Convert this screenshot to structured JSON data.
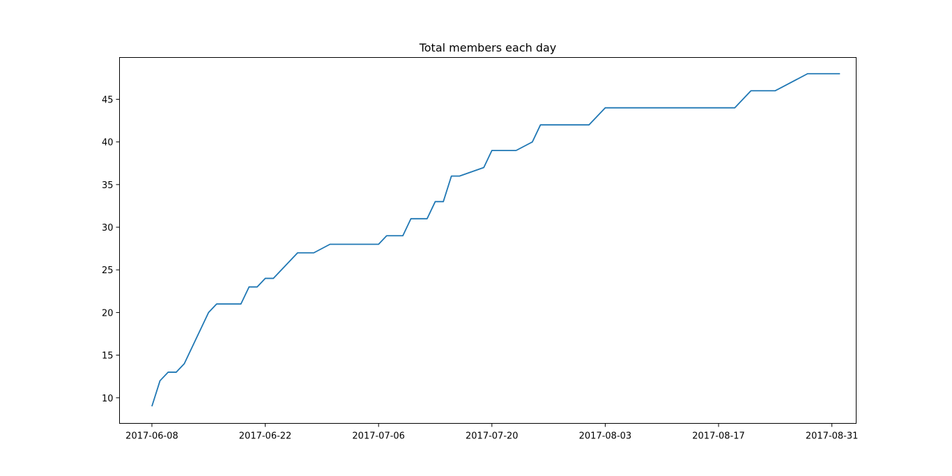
{
  "chart_data": {
    "type": "line",
    "title": "Total members each day",
    "xlabel": "",
    "ylabel": "",
    "x_axis_type": "date",
    "xlim": [
      "2017-06-04",
      "2017-09-03"
    ],
    "ylim": [
      7.0,
      49.9
    ],
    "x_ticks": [
      "2017-06-08",
      "2017-06-22",
      "2017-07-06",
      "2017-07-20",
      "2017-08-03",
      "2017-08-17",
      "2017-08-31"
    ],
    "y_ticks": [
      10,
      15,
      20,
      25,
      30,
      35,
      40,
      45
    ],
    "grid": false,
    "legend": "none",
    "colors": {
      "line": "#1f77b4"
    },
    "series": [
      {
        "x": [
          "2017-06-08",
          "2017-06-09",
          "2017-06-10",
          "2017-06-11",
          "2017-06-12",
          "2017-06-15",
          "2017-06-16",
          "2017-06-19",
          "2017-06-20",
          "2017-06-21",
          "2017-06-22",
          "2017-06-23",
          "2017-06-26",
          "2017-06-28",
          "2017-06-30",
          "2017-07-06",
          "2017-07-07",
          "2017-07-09",
          "2017-07-10",
          "2017-07-12",
          "2017-07-13",
          "2017-07-14",
          "2017-07-15",
          "2017-07-16",
          "2017-07-19",
          "2017-07-20",
          "2017-07-23",
          "2017-07-25",
          "2017-07-26",
          "2017-08-01",
          "2017-08-03",
          "2017-08-19",
          "2017-08-21",
          "2017-08-24",
          "2017-08-28",
          "2017-09-01"
        ],
        "values": [
          9,
          12,
          13,
          13,
          14,
          20,
          21,
          21,
          23,
          23,
          24,
          24,
          27,
          27,
          28,
          28,
          29,
          29,
          31,
          31,
          33,
          33,
          36,
          36,
          37,
          39,
          39,
          40,
          42,
          42,
          44,
          44,
          46,
          46,
          48,
          48
        ]
      }
    ]
  }
}
